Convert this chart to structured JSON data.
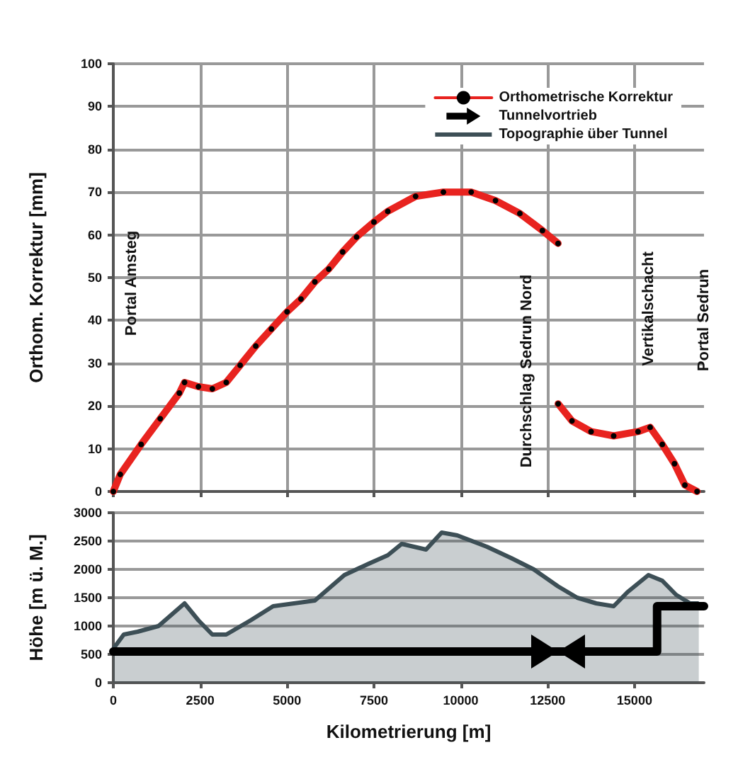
{
  "chart_data": [
    {
      "type": "line",
      "ylabel": "Orthom. Korrektur [mm]",
      "xlim": [
        0,
        17000
      ],
      "xticks": [
        0,
        2500,
        5000,
        7500,
        10000,
        12500,
        15000
      ],
      "ylim": [
        0,
        100
      ],
      "yticks": [
        0,
        10,
        20,
        30,
        40,
        50,
        60,
        70,
        80,
        90,
        100
      ],
      "grid": true,
      "legend": "top right",
      "tick_labels": "y",
      "series": [
        {
          "name": "Orthometrische Korrektur",
          "color": "#e8231f",
          "marker": "circle",
          "x": [
            0,
            200,
            800,
            1350,
            1900,
            2050,
            2450,
            2850,
            3250,
            3650,
            4100,
            4550,
            5000,
            5400,
            5800,
            6200,
            6600,
            7000,
            7500,
            7900,
            8700,
            9500,
            10300,
            11000,
            11700,
            12350,
            12800,
            12801,
            12802,
            13200,
            13750,
            14400,
            15100,
            15450,
            15800,
            16150,
            16450,
            16800
          ],
          "values": [
            0,
            4,
            11,
            17,
            23,
            25.5,
            24.5,
            24,
            25.5,
            29.5,
            34,
            38,
            42,
            45,
            49,
            52,
            56,
            59.5,
            63,
            65.5,
            69,
            70,
            70,
            68,
            65,
            61,
            58,
            null,
            20.5,
            16.5,
            14,
            13,
            14,
            15,
            11,
            6.5,
            1.5,
            0
          ]
        }
      ],
      "annotations": [
        "Portal Amsteg",
        "Durchschlag Sedrun Nord",
        "Vertikalschacht",
        "Portal Sedrun"
      ]
    },
    {
      "type": "line",
      "xlabel": "Kilometrierung [m]",
      "ylabel": "Höhe [m ü. M.]",
      "xlim": [
        0,
        17000
      ],
      "xticks": [
        0,
        2500,
        5000,
        7500,
        10000,
        12500,
        15000
      ],
      "ylim": [
        0,
        3000
      ],
      "yticks": [
        0,
        500,
        1000,
        1500,
        2000,
        2500,
        3000
      ],
      "grid": "y",
      "legend": "top right",
      "series": [
        {
          "name": "Tunnelvortrieb",
          "color": "#000000",
          "x": [
            0,
            15650,
            15650,
            17000
          ],
          "values": [
            550,
            550,
            1350,
            1350
          ]
        },
        {
          "name": "Topographie über Tunnel",
          "type": "area",
          "color": "#3d4f56",
          "x": [
            0,
            300,
            700,
            1300,
            2050,
            2450,
            2850,
            3250,
            3950,
            4600,
            5200,
            5800,
            6650,
            7350,
            7900,
            8300,
            9000,
            9450,
            9900,
            10750,
            11450,
            12100,
            12800,
            13350,
            13900,
            14400,
            14800,
            15400,
            15800,
            16200,
            16600,
            16850
          ],
          "values": [
            600,
            850,
            900,
            1000,
            1400,
            1100,
            850,
            850,
            1100,
            1350,
            1400,
            1450,
            1900,
            2100,
            2250,
            2450,
            2350,
            2650,
            2600,
            2400,
            2200,
            2000,
            1700,
            1500,
            1400,
            1350,
            1600,
            1900,
            1800,
            1550,
            1400,
            1400
          ]
        }
      ]
    }
  ]
}
